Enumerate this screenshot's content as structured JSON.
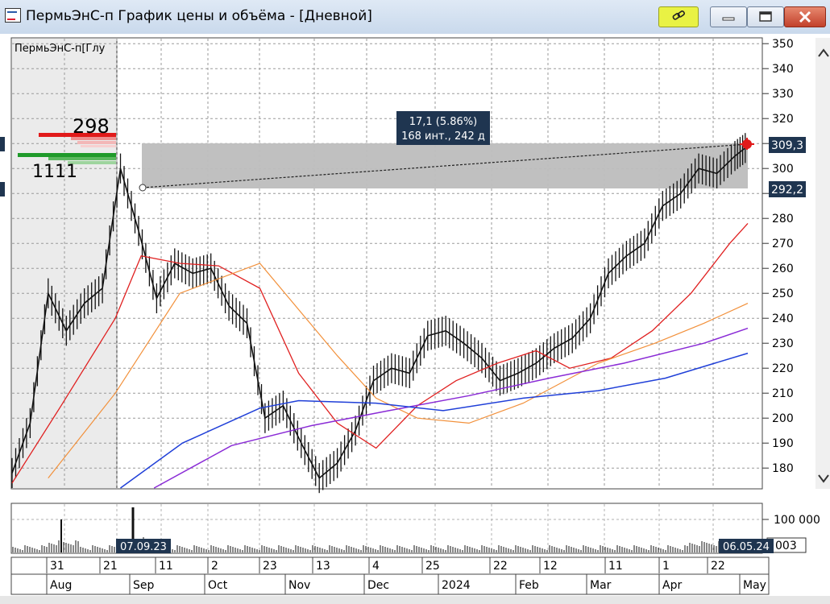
{
  "window": {
    "title": "ПермьЭнС-п График цены и объёма - [Дневной]",
    "buttons": {
      "link": "link-icon",
      "minimize": "minimize-icon",
      "maximize": "maximize-icon",
      "close": "close-icon"
    }
  },
  "chart": {
    "instrument_label": "ПермьЭнС-п[Глу",
    "depth_bid_value": "298",
    "depth_ask_value": "1111",
    "range_label": {
      "line1": "17,1 (5.86%)",
      "line2": "168 инт., 242 д"
    },
    "current_price_label": "309,3",
    "lower_price_label": "292,2",
    "volume_ticks": [
      "100 000",
      "003"
    ],
    "left_date_label": "07.09.23",
    "right_date_label": "06.05.24",
    "day_labels": [
      "31",
      "21",
      "11",
      "2",
      "23",
      "13",
      "4",
      "25",
      "22",
      "12",
      "11",
      "1",
      "22"
    ],
    "month_labels": [
      "Aug",
      "Sep",
      "Oct",
      "Nov",
      "Dec",
      "2024",
      "Feb",
      "Mar",
      "Apr",
      "May"
    ],
    "colors": {
      "accent_red": "#e11a1a",
      "ma_fast": "#e02020",
      "ma_mid": "#f2903a",
      "ma_slow": "#8a2bd6",
      "ma_long": "#1f3fd8",
      "zone": "#bdbdbd",
      "label_bg": "#1f3550"
    }
  },
  "chart_data": {
    "type": "line",
    "yticks": [
      180,
      190,
      200,
      210,
      220,
      230,
      240,
      250,
      260,
      270,
      280,
      290,
      300,
      310,
      320,
      330,
      340,
      350
    ],
    "ylim": [
      172,
      352
    ],
    "x_date_range": [
      "2023-07-27",
      "2024-05-07"
    ],
    "price_zone": [
      292.2,
      309.3
    ],
    "series": [
      {
        "x": [
          "2023-07-27",
          "2023-08-03",
          "2023-08-10",
          "2023-08-17",
          "2023-08-24",
          "2023-08-31",
          "2023-09-07",
          "2023-09-14",
          "2023-09-21",
          "2023-09-28",
          "2023-10-05",
          "2023-10-12",
          "2023-10-19",
          "2023-10-26",
          "2023-11-02",
          "2023-11-09",
          "2023-11-16",
          "2023-11-23",
          "2023-11-30",
          "2023-12-07",
          "2023-12-14",
          "2023-12-21",
          "2023-12-28",
          "2024-01-04",
          "2024-01-11",
          "2024-01-18",
          "2024-01-25",
          "2024-02-01",
          "2024-02-08",
          "2024-02-15",
          "2024-02-22",
          "2024-02-29",
          "2024-03-07",
          "2024-03-14",
          "2024-03-21",
          "2024-03-28",
          "2024-04-04",
          "2024-04-11",
          "2024-04-18",
          "2024-04-25",
          "2024-05-02",
          "2024-05-07"
        ],
        "values": [
          178,
          198,
          250,
          235,
          246,
          252,
          300,
          275,
          248,
          262,
          258,
          260,
          245,
          238,
          200,
          205,
          190,
          176,
          182,
          195,
          215,
          220,
          218,
          233,
          235,
          230,
          224,
          215,
          218,
          222,
          228,
          232,
          240,
          258,
          265,
          270,
          285,
          290,
          300,
          298,
          305,
          309
        ]
      },
      {
        "x": [
          "2023-07-27",
          "2023-08-15",
          "2023-09-05",
          "2023-09-15",
          "2023-09-30",
          "2023-10-15",
          "2023-10-31",
          "2023-11-15",
          "2023-11-30",
          "2023-12-15",
          "2023-12-31",
          "2024-01-15",
          "2024-01-31",
          "2024-02-15",
          "2024-02-28",
          "2024-03-15",
          "2024-03-31",
          "2024-04-15",
          "2024-04-30",
          "2024-05-07"
        ],
        "values": [
          174,
          205,
          240,
          265,
          262,
          261,
          252,
          218,
          198,
          188,
          205,
          215,
          222,
          227,
          220,
          224,
          235,
          250,
          270,
          278
        ]
      },
      {
        "x": [
          "2023-08-10",
          "2023-09-05",
          "2023-09-30",
          "2023-10-31",
          "2023-11-30",
          "2023-12-15",
          "2023-12-31",
          "2024-01-20",
          "2024-02-10",
          "2024-03-10",
          "2024-04-01",
          "2024-04-20",
          "2024-05-07"
        ],
        "values": [
          176,
          210,
          250,
          262,
          225,
          208,
          200,
          198,
          206,
          222,
          230,
          238,
          246
        ]
      },
      {
        "x": [
          "2023-09-20",
          "2023-10-20",
          "2023-11-20",
          "2023-12-20",
          "2024-01-20",
          "2024-02-20",
          "2024-03-20",
          "2024-04-20",
          "2024-05-07"
        ],
        "values": [
          172,
          189,
          197,
          203,
          209,
          216,
          222,
          230,
          236
        ]
      },
      {
        "x": [
          "2023-09-07",
          "2023-10-01",
          "2023-10-31",
          "2023-11-15",
          "2023-12-15",
          "2024-01-10",
          "2024-02-10",
          "2024-03-10",
          "2024-04-05",
          "2024-05-07"
        ],
        "values": [
          172,
          190,
          204,
          207,
          206,
          203,
          208,
          211,
          216,
          226
        ]
      }
    ],
    "volume_ticks": [
      100000
    ]
  }
}
